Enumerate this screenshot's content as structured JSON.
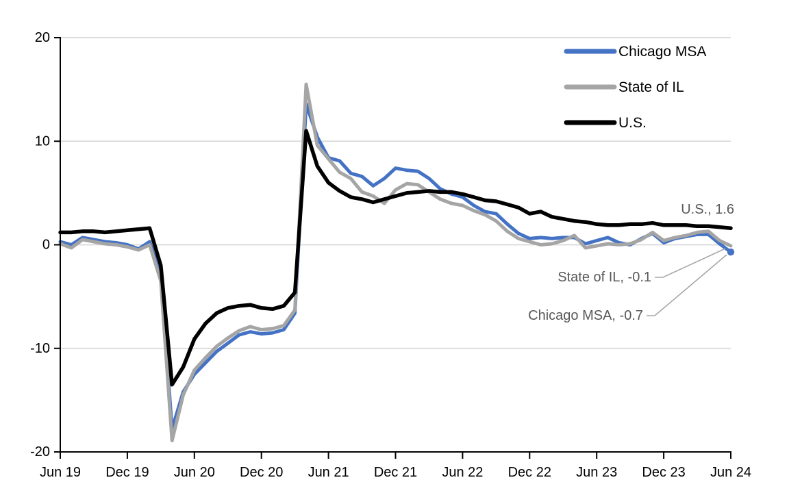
{
  "chart_data": {
    "type": "line",
    "title": "",
    "x_frequency": "monthly",
    "x_range": [
      "Jun 19",
      "Jun 24"
    ],
    "x_tick_labels": [
      "Jun 19",
      "Dec 19",
      "Jun 20",
      "Dec 20",
      "Jun 21",
      "Dec 21",
      "Jun 22",
      "Dec 22",
      "Jun 23",
      "Dec 23",
      "Jun 24"
    ],
    "y_tick_labels": [
      "20",
      "10",
      "0",
      "-10",
      "-20"
    ],
    "y_tick_values": [
      20,
      10,
      0,
      -10,
      -20
    ],
    "ylim": [
      -20,
      20
    ],
    "grid": "horizontal",
    "legend_position": "top-right-inside",
    "colors": {
      "axis": "#000000",
      "gridline": "#D9D9D9",
      "annotation_text": "#595959",
      "leader_line": "#A6A6A6",
      "background": "#FFFFFF"
    },
    "series": [
      {
        "name": "Chicago MSA",
        "color": "#4472C4",
        "stroke_width": 5,
        "end_dot": true,
        "values": [
          0.3,
          0.0,
          0.7,
          0.5,
          0.3,
          0.2,
          0.0,
          -0.4,
          0.3,
          -3.0,
          -17.8,
          -14.2,
          -12.5,
          -11.4,
          -10.3,
          -9.5,
          -8.7,
          -8.4,
          -8.6,
          -8.5,
          -8.2,
          -6.6,
          13.6,
          10.4,
          8.4,
          8.1,
          6.9,
          6.6,
          5.7,
          6.4,
          7.4,
          7.2,
          7.1,
          6.4,
          5.4,
          4.9,
          4.6,
          3.8,
          3.2,
          3.0,
          2.0,
          1.1,
          0.6,
          0.7,
          0.6,
          0.7,
          0.7,
          0.1,
          0.4,
          0.7,
          0.2,
          0.0,
          0.6,
          1.1,
          0.2,
          0.6,
          0.8,
          1.0,
          1.0,
          0.1,
          -0.7
        ]
      },
      {
        "name": "State of IL",
        "color": "#A5A5A5",
        "stroke_width": 5,
        "end_dot": false,
        "values": [
          0.1,
          -0.3,
          0.5,
          0.3,
          0.1,
          0.0,
          -0.2,
          -0.5,
          0.0,
          -3.5,
          -18.9,
          -14.5,
          -12.1,
          -10.9,
          -9.8,
          -9.0,
          -8.3,
          -7.9,
          -8.2,
          -8.1,
          -7.8,
          -6.3,
          15.5,
          9.6,
          8.3,
          7.0,
          6.4,
          5.1,
          4.7,
          4.0,
          5.3,
          5.9,
          5.8,
          5.1,
          4.4,
          4.0,
          3.8,
          3.3,
          2.9,
          2.3,
          1.3,
          0.6,
          0.3,
          0.0,
          0.1,
          0.4,
          0.9,
          -0.3,
          -0.1,
          0.1,
          0.0,
          0.1,
          0.5,
          1.2,
          0.4,
          0.7,
          0.9,
          1.2,
          1.3,
          0.4,
          -0.1
        ]
      },
      {
        "name": "U.S.",
        "color": "#000000",
        "stroke_width": 5.5,
        "end_dot": false,
        "values": [
          1.2,
          1.2,
          1.3,
          1.3,
          1.2,
          1.3,
          1.4,
          1.5,
          1.6,
          -2.0,
          -13.5,
          -11.8,
          -9.1,
          -7.6,
          -6.6,
          -6.1,
          -5.9,
          -5.8,
          -6.1,
          -6.2,
          -5.9,
          -4.6,
          11.0,
          7.6,
          6.0,
          5.2,
          4.6,
          4.4,
          4.1,
          4.4,
          4.7,
          5.0,
          5.1,
          5.2,
          5.1,
          5.1,
          4.9,
          4.6,
          4.3,
          4.2,
          3.9,
          3.6,
          3.0,
          3.2,
          2.7,
          2.5,
          2.3,
          2.2,
          2.0,
          1.9,
          1.9,
          2.0,
          2.0,
          2.1,
          1.9,
          1.9,
          1.9,
          1.8,
          1.8,
          1.7,
          1.6
        ]
      }
    ],
    "annotations": {
      "us": {
        "text": "U.S., 1.6",
        "value": 1.6
      },
      "il": {
        "text": "State of IL, -0.1",
        "value": -0.1
      },
      "chicago": {
        "text": "Chicago MSA, -0.7",
        "value": -0.7
      }
    }
  }
}
